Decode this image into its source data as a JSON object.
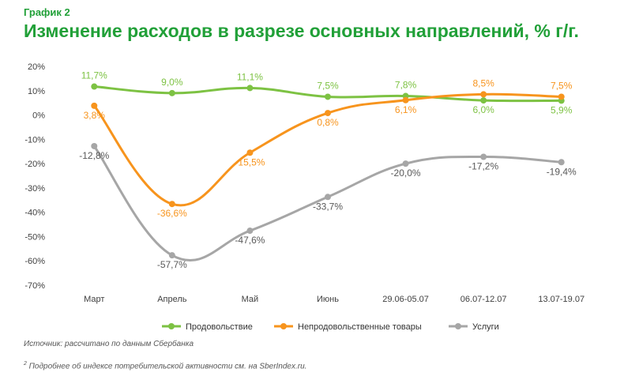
{
  "header": {
    "kicker": "График 2",
    "title": "Изменение расходов в разрезе основных направлений, % г/г."
  },
  "chart_data": {
    "type": "line",
    "categories": [
      "Март",
      "Апрель",
      "Май",
      "Июнь",
      "29.06-05.07",
      "06.07-12.07",
      "13.07-19.07"
    ],
    "ylim": [
      -70,
      20
    ],
    "yticks": [
      "20%",
      "10%",
      "0%",
      "-10%",
      "-20%",
      "-30%",
      "-40%",
      "-50%",
      "-60%",
      "-70%"
    ],
    "grid": false,
    "legend": "bottom",
    "series": [
      {
        "name": "Продовольствие",
        "color": "#7dc243",
        "values": [
          11.7,
          9.0,
          11.1,
          7.5,
          7.8,
          6.0,
          5.9
        ],
        "labels": [
          "11,7%",
          "9,0%",
          "11,1%",
          "7,5%",
          "7,8%",
          "6,0%",
          "5,9%"
        ],
        "label_pos": [
          "above",
          "above",
          "above",
          "above",
          "above",
          "below",
          "below"
        ]
      },
      {
        "name": "Непродовольственные товары",
        "color": "#f7941d",
        "values": [
          3.8,
          -36.6,
          -15.5,
          0.8,
          6.1,
          8.5,
          7.5
        ],
        "labels": [
          "3,8%",
          "-36,6%",
          "-15,5%",
          "0,8%",
          "6,1%",
          "8,5%",
          "7,5%"
        ],
        "label_pos": [
          "below",
          "below",
          "below",
          "below",
          "below",
          "above",
          "above"
        ]
      },
      {
        "name": "Услуги",
        "color": "#a6a6a6",
        "values": [
          -12.8,
          -57.7,
          -47.6,
          -33.7,
          -20.0,
          -17.2,
          -19.4
        ],
        "labels": [
          "-12,8%",
          "-57,7%",
          "-47,6%",
          "-33,7%",
          "-20,0%",
          "-17,2%",
          "-19,4%"
        ],
        "label_pos": [
          "below",
          "below",
          "below",
          "below",
          "below",
          "below",
          "below"
        ]
      }
    ]
  },
  "footer": {
    "source": "Источник: рассчитано по данным Сбербанка",
    "footnote_mark": "2",
    "footnote": " Подробнее об индексе потребительской активности см. на SberIndex.ru."
  }
}
